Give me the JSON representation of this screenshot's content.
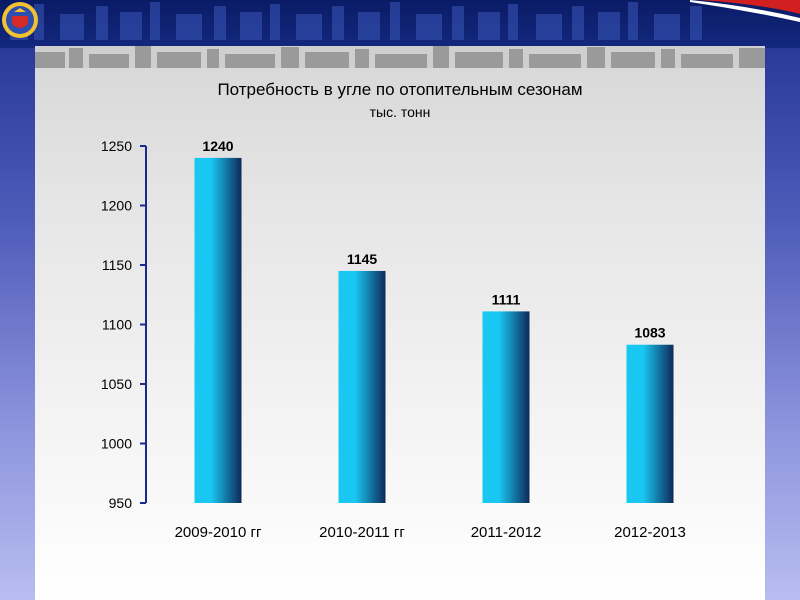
{
  "chart_data": {
    "type": "bar",
    "title": "Потребность в угле по отопительным сезонам",
    "subtitle": "тыс. тонн",
    "categories": [
      "2009-2010 гг",
      "2010-2011 гг",
      "2011-2012",
      "2012-2013"
    ],
    "values": [
      1240,
      1145,
      1111,
      1083
    ],
    "data_labels": [
      "1240",
      "1145",
      "1111",
      "1083"
    ],
    "ylim": [
      950,
      1250
    ],
    "yticks": [
      950,
      1000,
      1050,
      1100,
      1150,
      1200,
      1250
    ],
    "grid": false,
    "legend": "none",
    "xlabel": "",
    "ylabel": "",
    "colors": {
      "bar_light": "#19c8f2",
      "bar_dark": "#0d2a58",
      "axis": "#1a2a8c"
    }
  }
}
